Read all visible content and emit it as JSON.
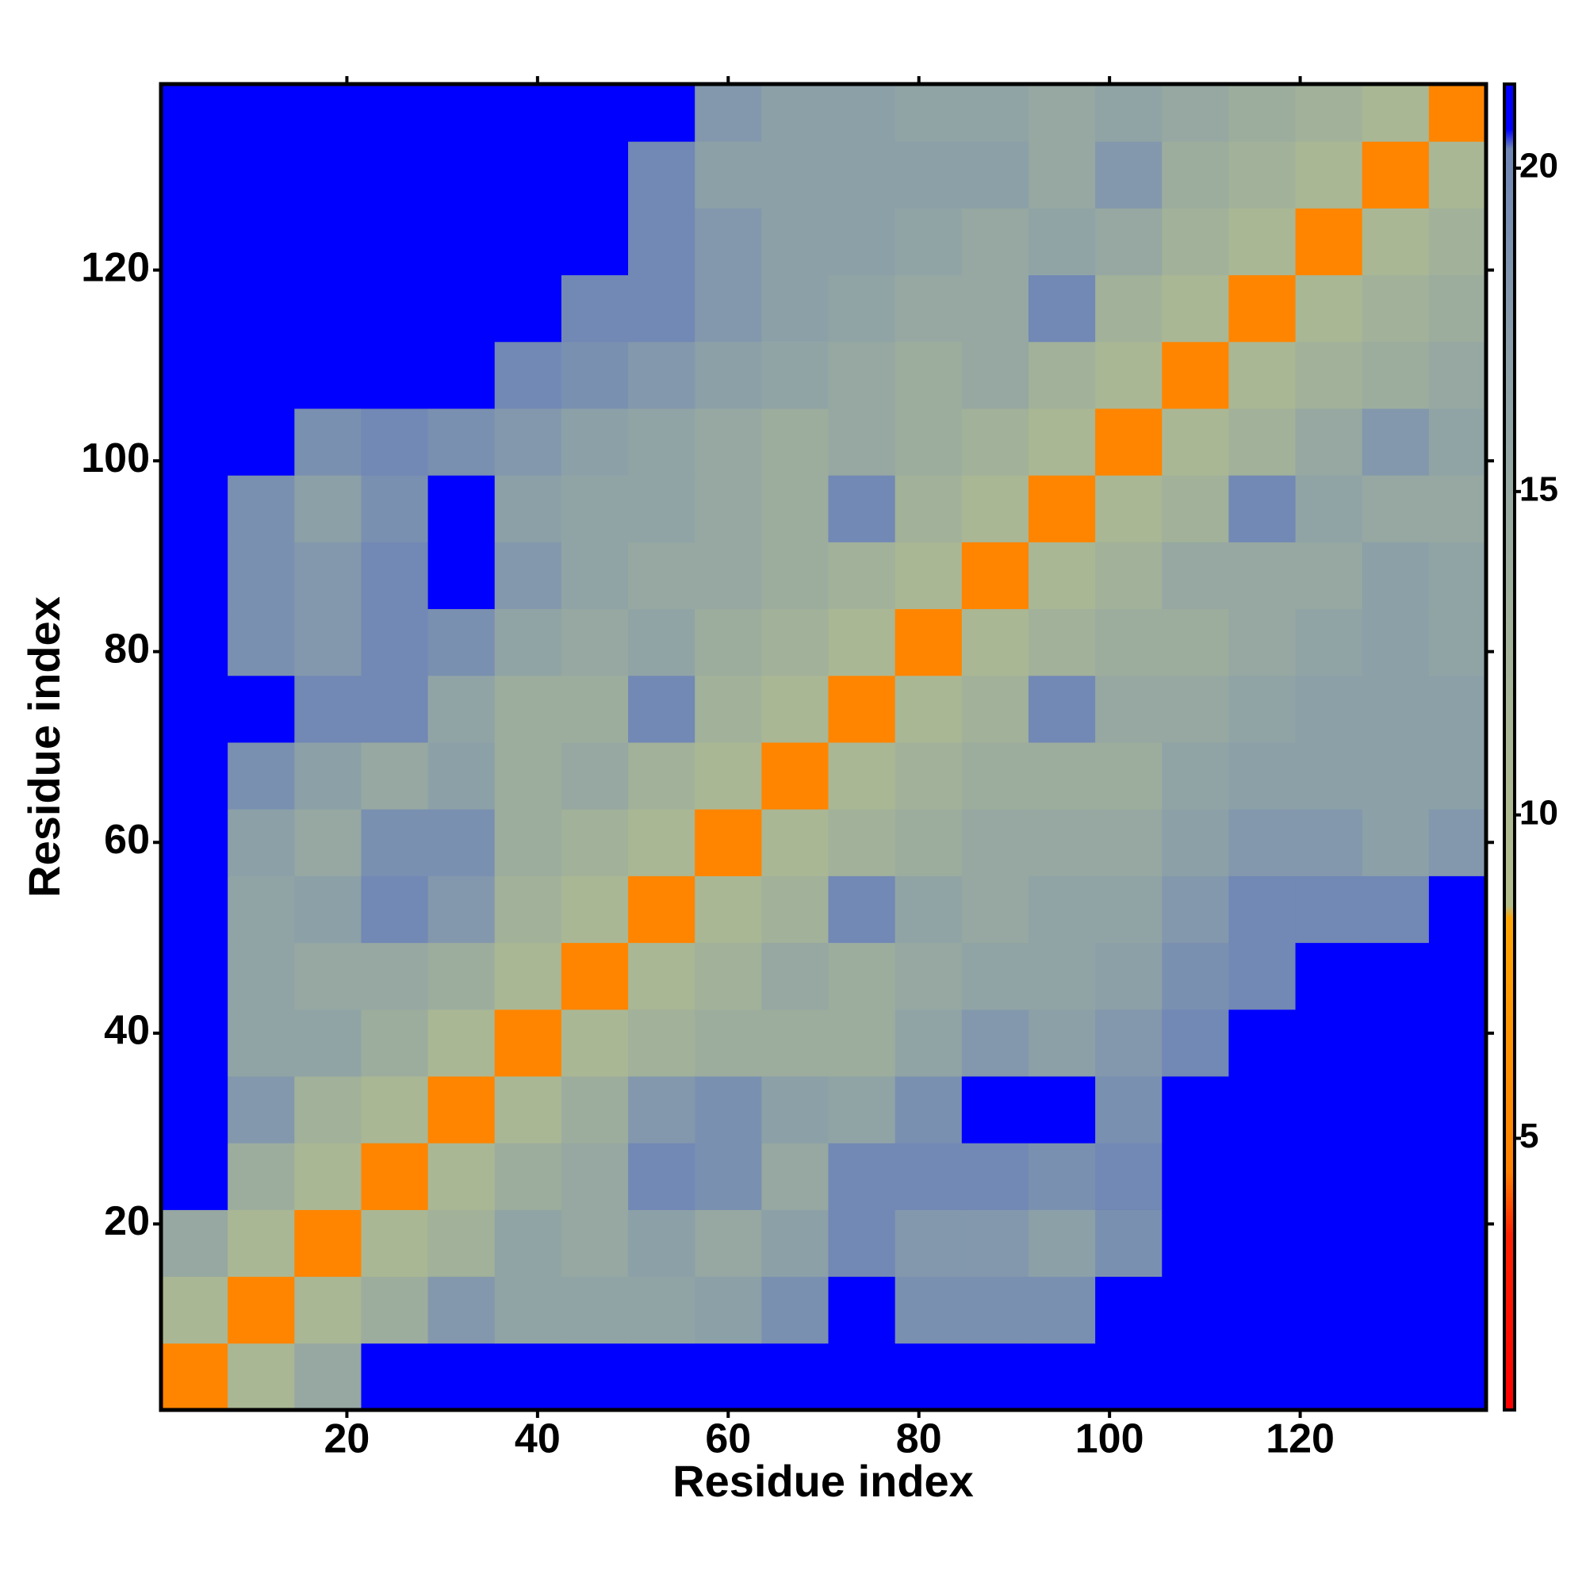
{
  "chart_data": {
    "type": "heatmap",
    "x_label": "Residue index",
    "y_label": "Residue index",
    "xlim": [
      0.5,
      139.5
    ],
    "ylim": [
      0.5,
      139.5
    ],
    "xticks": [
      20,
      40,
      60,
      80,
      100,
      120
    ],
    "yticks": [
      20,
      40,
      60,
      80,
      100,
      120
    ],
    "x_bins": [
      0.5,
      7.5,
      14.5,
      21.5,
      28.5,
      35.5,
      42.5,
      49.5,
      56.5,
      63.5,
      70.5,
      77.5,
      84.5,
      91.5,
      98.5,
      105.5,
      112.5,
      119.5,
      126.5,
      133.5,
      139.5
    ],
    "y_bins": [
      0.5,
      7.5,
      14.5,
      21.5,
      28.5,
      35.5,
      42.5,
      49.5,
      56.5,
      63.5,
      70.5,
      77.5,
      84.5,
      91.5,
      98.5,
      105.5,
      112.5,
      119.5,
      126.5,
      133.5,
      139.5
    ],
    "values": [
      [
        5,
        11,
        15,
        21,
        21,
        21,
        21,
        21,
        21,
        21,
        21,
        21,
        21,
        21,
        21,
        21,
        21,
        21,
        21,
        21
      ],
      [
        11,
        5,
        11,
        14,
        18,
        16,
        16,
        16,
        17,
        19,
        21,
        19,
        19,
        19,
        21,
        21,
        21,
        21,
        21,
        21
      ],
      [
        15,
        11,
        5,
        11,
        13,
        16,
        15,
        17,
        15,
        17,
        20,
        18,
        18,
        17,
        19,
        21,
        21,
        21,
        21,
        21
      ],
      [
        21,
        14,
        11,
        5,
        11,
        14,
        15,
        20,
        19,
        15,
        20,
        20,
        20,
        19,
        20,
        21,
        21,
        21,
        21,
        21
      ],
      [
        21,
        18,
        13,
        11,
        5,
        11,
        14,
        18,
        19,
        17,
        16,
        19,
        21,
        21,
        19,
        21,
        21,
        21,
        21,
        21
      ],
      [
        21,
        16,
        16,
        14,
        11,
        5,
        11,
        13,
        14,
        14,
        14,
        16,
        18,
        17,
        18,
        20,
        21,
        21,
        21,
        21
      ],
      [
        21,
        16,
        15,
        15,
        14,
        11,
        5,
        11,
        13,
        15,
        14,
        15,
        16,
        16,
        17,
        19,
        20,
        21,
        21,
        21
      ],
      [
        21,
        16,
        17,
        20,
        18,
        13,
        11,
        5,
        11,
        13,
        20,
        16,
        15,
        16,
        16,
        18,
        20,
        20,
        20,
        21
      ],
      [
        21,
        17,
        15,
        19,
        19,
        14,
        13,
        11,
        5,
        11,
        13,
        14,
        15,
        15,
        15,
        17,
        18,
        18,
        17,
        18
      ],
      [
        21,
        19,
        17,
        15,
        17,
        14,
        15,
        13,
        11,
        5,
        11,
        13,
        14,
        14,
        14,
        16,
        17,
        17,
        17,
        17
      ],
      [
        21,
        21,
        20,
        20,
        16,
        14,
        14,
        20,
        13,
        11,
        5,
        11,
        13,
        20,
        15,
        15,
        16,
        17,
        17,
        17
      ],
      [
        21,
        19,
        18,
        20,
        19,
        16,
        15,
        16,
        14,
        13,
        11,
        5,
        11,
        13,
        14,
        14,
        15,
        16,
        17,
        16
      ],
      [
        21,
        19,
        18,
        20,
        21,
        18,
        16,
        15,
        15,
        14,
        13,
        11,
        5,
        11,
        13,
        15,
        15,
        15,
        17,
        16
      ],
      [
        21,
        19,
        17,
        19,
        21,
        17,
        16,
        16,
        15,
        14,
        20,
        13,
        11,
        5,
        11,
        13,
        20,
        16,
        15,
        15
      ],
      [
        21,
        21,
        19,
        20,
        19,
        18,
        17,
        16,
        15,
        14,
        15,
        14,
        13,
        11,
        5,
        11,
        13,
        15,
        18,
        16
      ],
      [
        21,
        21,
        21,
        21,
        21,
        20,
        19,
        18,
        17,
        16,
        15,
        14,
        15,
        13,
        11,
        5,
        11,
        13,
        14,
        15
      ],
      [
        21,
        21,
        21,
        21,
        21,
        21,
        20,
        20,
        18,
        17,
        16,
        15,
        15,
        20,
        13,
        11,
        5,
        11,
        13,
        14
      ],
      [
        21,
        21,
        21,
        21,
        21,
        21,
        21,
        20,
        18,
        17,
        17,
        16,
        15,
        16,
        15,
        13,
        11,
        5,
        11,
        13
      ],
      [
        21,
        21,
        21,
        21,
        21,
        21,
        21,
        20,
        17,
        17,
        17,
        17,
        17,
        15,
        18,
        14,
        13,
        11,
        5,
        11
      ],
      [
        21,
        21,
        21,
        21,
        21,
        21,
        21,
        21,
        18,
        17,
        17,
        16,
        16,
        15,
        16,
        15,
        14,
        13,
        11,
        5
      ]
    ],
    "colorscale": [
      {
        "value": 0.8,
        "color": "#ff0000"
      },
      {
        "value": 3.5,
        "color": "#ff2000"
      },
      {
        "value": 4.5,
        "color": "#ff8000"
      },
      {
        "value": 8.4,
        "color": "#ffa500"
      },
      {
        "value": 8.6,
        "color": "#b3bd8c"
      },
      {
        "value": 12,
        "color": "#a6b597"
      },
      {
        "value": 17,
        "color": "#8ca0a8"
      },
      {
        "value": 20.3,
        "color": "#6f86b6"
      },
      {
        "value": 20.6,
        "color": "#0000ff"
      },
      {
        "value": 21.3,
        "color": "#0000ff"
      }
    ],
    "colorbar": {
      "lim": [
        0.8,
        21.3
      ],
      "ticks": [
        5,
        10,
        15,
        20
      ]
    }
  }
}
